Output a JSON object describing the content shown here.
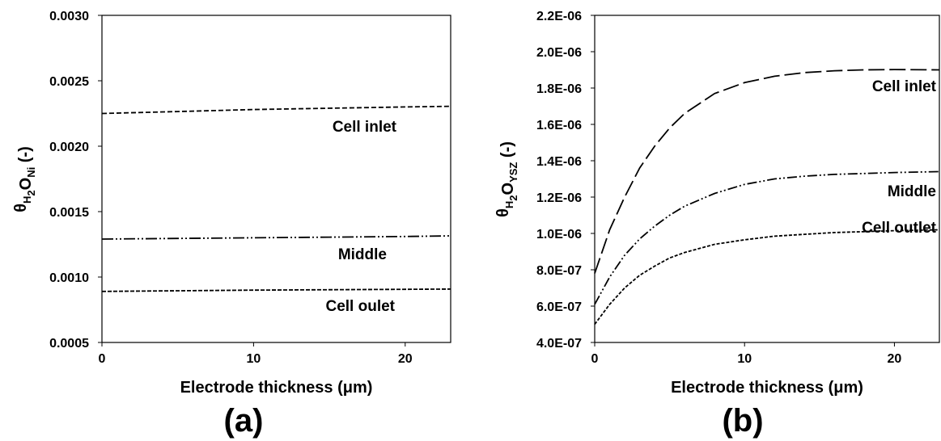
{
  "chart_data": [
    {
      "type": "line",
      "panel_label": "(a)",
      "xlabel": "Electrode thickness (μm)",
      "ylabel": {
        "main": "θ",
        "sub1": "H",
        "sub2": "2",
        "mid": "O",
        "sub3": "Ni",
        "unit": " (-)"
      },
      "xlim": [
        0,
        23
      ],
      "ylim": [
        0.0005,
        0.003
      ],
      "xticks": [
        0,
        10,
        20
      ],
      "yticks": [
        0.0005,
        0.001,
        0.0015,
        0.002,
        0.0025,
        0.003
      ],
      "ytick_labels": [
        "0.0005",
        "0.0010",
        "0.0015",
        "0.0020",
        "0.0025",
        "0.0030"
      ],
      "grid": false,
      "series": [
        {
          "label": "Cell inlet",
          "style": "dash",
          "x": [
            0,
            5,
            10,
            15,
            20,
            23
          ],
          "y": [
            0.00225,
            0.002265,
            0.00228,
            0.00229,
            0.0023,
            0.002305
          ]
        },
        {
          "label": "Middle",
          "style": "dash-dot-dot",
          "x": [
            0,
            5,
            10,
            15,
            20,
            23
          ],
          "y": [
            0.00129,
            0.001295,
            0.0013,
            0.001305,
            0.00131,
            0.001315
          ]
        },
        {
          "label": "Cell oulet",
          "style": "short-dash",
          "x": [
            0,
            5,
            10,
            15,
            20,
            23
          ],
          "y": [
            0.00089,
            0.000895,
            0.0009,
            0.000903,
            0.000906,
            0.000908
          ]
        }
      ]
    },
    {
      "type": "line",
      "panel_label": "(b)",
      "xlabel": "Electrode thickness (μm)",
      "ylabel": {
        "main": "θ",
        "sub1": "H",
        "sub2": "2",
        "mid": "O",
        "sub3": "YSZ",
        "unit": " (-)"
      },
      "xlim": [
        0,
        23
      ],
      "ylim": [
        4e-07,
        2.2e-06
      ],
      "xticks": [
        0,
        10,
        20
      ],
      "yticks": [
        4e-07,
        6e-07,
        8e-07,
        1e-06,
        1.2e-06,
        1.4e-06,
        1.6e-06,
        1.8e-06,
        2e-06,
        2.2e-06
      ],
      "ytick_labels": [
        "4.0E-07",
        "6.0E-07",
        "8.0E-07",
        "1.0E-06",
        "1.2E-06",
        "1.4E-06",
        "1.6E-06",
        "1.8E-06",
        "2.0E-06",
        "2.2E-06"
      ],
      "grid": false,
      "series": [
        {
          "label": "Cell inlet",
          "style": "long-dash",
          "x": [
            0,
            1,
            2,
            3,
            4,
            5,
            6,
            8,
            10,
            12,
            14,
            16,
            18,
            20,
            23
          ],
          "y": [
            7.8e-07,
            1.02e-06,
            1.2e-06,
            1.36e-06,
            1.48e-06,
            1.58e-06,
            1.66e-06,
            1.77e-06,
            1.83e-06,
            1.865e-06,
            1.885e-06,
            1.895e-06,
            1.9e-06,
            1.902e-06,
            1.9e-06
          ]
        },
        {
          "label": "Middle",
          "style": "dash-dot-dot",
          "x": [
            0,
            1,
            2,
            3,
            4,
            5,
            6,
            8,
            10,
            12,
            14,
            16,
            18,
            20,
            23
          ],
          "y": [
            6.1e-07,
            7.6e-07,
            8.8e-07,
            9.7e-07,
            1.04e-06,
            1.1e-06,
            1.15e-06,
            1.22e-06,
            1.27e-06,
            1.3e-06,
            1.315e-06,
            1.325e-06,
            1.33e-06,
            1.335e-06,
            1.34e-06
          ]
        },
        {
          "label": "Cell outlet",
          "style": "short-dash",
          "x": [
            0,
            1,
            2,
            3,
            4,
            5,
            6,
            8,
            10,
            12,
            14,
            16,
            18,
            20,
            23
          ],
          "y": [
            5e-07,
            6.1e-07,
            7e-07,
            7.7e-07,
            8.2e-07,
            8.65e-07,
            8.95e-07,
            9.4e-07,
            9.65e-07,
            9.85e-07,
            9.95e-07,
            1.005e-06,
            1.01e-06,
            1.015e-06,
            1.02e-06
          ]
        }
      ]
    }
  ]
}
